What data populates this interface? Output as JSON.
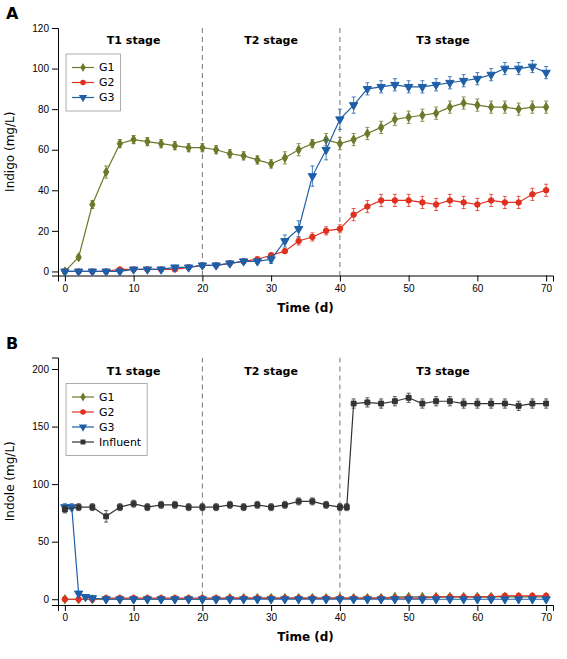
{
  "chart_data": [
    {
      "type": "line",
      "title": "A",
      "x_label": "Time (d)",
      "y_label": "Indigo (mg/L)",
      "xlim": [
        -1,
        71
      ],
      "ylim": [
        -2,
        120
      ],
      "xticks": [
        0,
        10,
        20,
        30,
        40,
        50,
        60,
        70
      ],
      "yticks": [
        0,
        20,
        40,
        60,
        80,
        100,
        120
      ],
      "grid": false,
      "legend": "upper left",
      "vertical_lines": [
        20,
        40
      ],
      "annotations": [
        {
          "text": "T1 stage",
          "x": 10,
          "y": 116
        },
        {
          "text": "T2 stage",
          "x": 30,
          "y": 116
        },
        {
          "text": "T3 stage",
          "x": 55,
          "y": 116
        }
      ],
      "series": [
        {
          "name": "G1",
          "color": "#6b7a2a",
          "marker": "diamond",
          "line_style": "solid",
          "x": [
            0,
            2,
            4,
            6,
            8,
            10,
            12,
            14,
            16,
            18,
            20,
            22,
            24,
            26,
            28,
            30,
            32,
            34,
            36,
            38,
            40,
            42,
            44,
            46,
            48,
            50,
            52,
            54,
            56,
            58,
            60,
            62,
            64,
            66,
            68,
            70
          ],
          "values": [
            0,
            7,
            33,
            49,
            63,
            65,
            64,
            63,
            62,
            61,
            61,
            60,
            58,
            57,
            55,
            53,
            56,
            60,
            63,
            65,
            63,
            65,
            68,
            71,
            75,
            76,
            77,
            78,
            81,
            83,
            82,
            81,
            81,
            80,
            81,
            81
          ],
          "errors": [
            1,
            1,
            2,
            3,
            2,
            2,
            2,
            2,
            2,
            2,
            2,
            2,
            2,
            2,
            2,
            2,
            3,
            3,
            2,
            3,
            3,
            3,
            3,
            3,
            3,
            3,
            3,
            3,
            3,
            3,
            3,
            3,
            3,
            3,
            3,
            3
          ]
        },
        {
          "name": "G2",
          "color": "#e03020",
          "marker": "circle",
          "line_style": "solid",
          "x": [
            0,
            2,
            4,
            6,
            8,
            10,
            12,
            14,
            16,
            18,
            20,
            22,
            24,
            26,
            28,
            30,
            32,
            34,
            36,
            38,
            40,
            42,
            44,
            46,
            48,
            50,
            52,
            54,
            56,
            58,
            60,
            62,
            64,
            66,
            68,
            70
          ],
          "values": [
            0,
            0,
            0,
            0,
            1,
            1,
            1,
            1,
            1,
            2,
            3,
            3,
            4,
            5,
            6,
            8,
            10,
            15,
            17,
            20,
            21,
            28,
            32,
            35,
            35,
            35,
            34,
            33,
            35,
            34,
            33,
            35,
            34,
            34,
            38,
            40
          ],
          "errors": [
            0.5,
            0.5,
            0.5,
            0.5,
            0.5,
            0.5,
            0.5,
            0.5,
            0.5,
            1,
            1,
            1,
            1,
            1,
            1,
            1,
            1,
            2,
            2,
            2,
            2,
            3,
            3,
            3,
            3,
            3,
            3,
            3,
            3,
            3,
            3,
            3,
            3,
            3,
            3,
            3
          ]
        },
        {
          "name": "G3",
          "color": "#1e5fa8",
          "marker": "triangle_down",
          "line_style": "solid",
          "x": [
            0,
            2,
            4,
            6,
            8,
            10,
            12,
            14,
            16,
            18,
            20,
            22,
            24,
            26,
            28,
            30,
            32,
            34,
            36,
            38,
            40,
            42,
            44,
            46,
            48,
            50,
            52,
            54,
            56,
            58,
            60,
            62,
            64,
            66,
            68,
            70
          ],
          "values": [
            0,
            0,
            0,
            0,
            0,
            1,
            1,
            1,
            2,
            2,
            3,
            3,
            4,
            5,
            5,
            6,
            15,
            21,
            47,
            60,
            75,
            82,
            90,
            91,
            92,
            91,
            91,
            92,
            93,
            94,
            95,
            97,
            100,
            100,
            101,
            98
          ],
          "errors": [
            0.5,
            0.5,
            0.5,
            0.5,
            0.5,
            0.5,
            0.5,
            0.5,
            1,
            1,
            1,
            1,
            1,
            1,
            1,
            2,
            3,
            4,
            5,
            5,
            5,
            4,
            3,
            3,
            3,
            3,
            3,
            3,
            3,
            3,
            3,
            3,
            3,
            3,
            3,
            3
          ]
        }
      ]
    },
    {
      "type": "line",
      "title": "B",
      "x_label": "Time (d)",
      "y_label": "Indole (mg/L)",
      "xlim": [
        -1,
        71
      ],
      "ylim": [
        -5,
        210
      ],
      "xticks": [
        0,
        10,
        20,
        30,
        40,
        50,
        60,
        70
      ],
      "yticks": [
        0,
        50,
        100,
        150,
        200
      ],
      "grid": false,
      "legend": "upper left",
      "vertical_lines": [
        20,
        40
      ],
      "annotations": [
        {
          "text": "T1 stage",
          "x": 10,
          "y": 202
        },
        {
          "text": "T2 stage",
          "x": 30,
          "y": 202
        },
        {
          "text": "T3 stage",
          "x": 55,
          "y": 202
        }
      ],
      "series": [
        {
          "name": "G1",
          "color": "#6b7a2a",
          "marker": "diamond",
          "line_style": "solid",
          "x": [
            0,
            2,
            4,
            6,
            8,
            10,
            12,
            14,
            16,
            18,
            20,
            22,
            24,
            26,
            28,
            30,
            32,
            34,
            36,
            38,
            40,
            42,
            44,
            46,
            48,
            50,
            52,
            54,
            56,
            58,
            60,
            62,
            64,
            66,
            68,
            70
          ],
          "values": [
            0,
            0,
            0,
            0,
            0,
            0,
            0,
            0,
            0,
            0,
            0,
            0,
            1,
            1,
            1,
            1,
            1,
            1,
            1,
            1,
            1,
            1,
            1,
            1,
            2,
            2,
            2,
            2,
            2,
            2,
            2,
            2,
            2,
            2,
            2,
            2
          ],
          "errors": [
            0.3,
            0.3,
            0.3,
            0.3,
            0.3,
            0.3,
            0.3,
            0.3,
            0.3,
            0.3,
            0.3,
            0.3,
            0.3,
            0.3,
            0.3,
            0.3,
            0.3,
            0.3,
            0.3,
            0.3,
            0.3,
            0.3,
            0.3,
            0.3,
            0.3,
            0.3,
            0.3,
            0.3,
            0.3,
            0.3,
            0.3,
            0.3,
            0.3,
            0.3,
            0.3,
            0.3
          ]
        },
        {
          "name": "G2",
          "color": "#e03020",
          "marker": "circle",
          "line_style": "solid",
          "x": [
            0,
            2,
            4,
            6,
            8,
            10,
            12,
            14,
            16,
            18,
            20,
            22,
            24,
            26,
            28,
            30,
            32,
            34,
            36,
            38,
            40,
            42,
            44,
            46,
            48,
            50,
            52,
            54,
            56,
            58,
            60,
            62,
            64,
            66,
            68,
            70
          ],
          "values": [
            0,
            0,
            0,
            1,
            1,
            1,
            1,
            1,
            1,
            1,
            1,
            1,
            1,
            1,
            1,
            1,
            1,
            1,
            1,
            1,
            1,
            1,
            1,
            1,
            1,
            1,
            1,
            2,
            2,
            2,
            2,
            2,
            3,
            3,
            3,
            3
          ],
          "errors": [
            0.3,
            0.3,
            0.3,
            0.3,
            0.3,
            0.3,
            0.3,
            0.3,
            0.3,
            0.3,
            0.3,
            0.3,
            0.3,
            0.3,
            0.3,
            0.3,
            0.3,
            0.3,
            0.3,
            0.3,
            0.3,
            0.3,
            0.3,
            0.3,
            0.3,
            0.3,
            0.3,
            0.3,
            0.3,
            0.3,
            0.3,
            0.3,
            0.3,
            0.3,
            0.3,
            0.3
          ]
        },
        {
          "name": "G3",
          "color": "#1e5fa8",
          "marker": "triangle_down",
          "line_style": "solid",
          "x": [
            0,
            1,
            2,
            3,
            4,
            6,
            8,
            10,
            12,
            14,
            16,
            18,
            20,
            22,
            24,
            26,
            28,
            30,
            32,
            34,
            36,
            38,
            40,
            42,
            44,
            46,
            48,
            50,
            52,
            54,
            56,
            58,
            60,
            62,
            64,
            66,
            68,
            70
          ],
          "values": [
            80,
            80,
            5,
            2,
            1,
            0,
            0,
            0,
            0,
            0,
            0,
            0,
            0,
            0,
            0,
            0,
            0,
            0,
            0,
            0,
            0,
            0,
            0,
            0,
            0,
            0,
            0,
            0,
            0,
            0,
            0,
            0,
            0,
            0,
            0,
            0,
            0,
            0
          ],
          "errors": [
            3,
            3,
            1,
            0.5,
            0.3,
            0.3,
            0.3,
            0.3,
            0.3,
            0.3,
            0.3,
            0.3,
            0.3,
            0.3,
            0.3,
            0.3,
            0.3,
            0.3,
            0.3,
            0.3,
            0.3,
            0.3,
            0.3,
            0.3,
            0.3,
            0.3,
            0.3,
            0.3,
            0.3,
            0.3,
            0.3,
            0.3,
            0.3,
            0.3,
            0.3,
            0.3,
            0.3,
            0.3
          ]
        },
        {
          "name": "Influent",
          "color": "#333333",
          "marker": "square",
          "line_style": "solid",
          "x": [
            0,
            2,
            4,
            6,
            8,
            10,
            12,
            14,
            16,
            18,
            20,
            22,
            24,
            26,
            28,
            30,
            32,
            34,
            36,
            38,
            40,
            41,
            42,
            44,
            46,
            48,
            50,
            52,
            54,
            56,
            58,
            60,
            62,
            64,
            66,
            68,
            70
          ],
          "values": [
            78,
            80,
            80,
            72,
            80,
            83,
            80,
            82,
            82,
            80,
            80,
            80,
            82,
            80,
            82,
            80,
            82,
            85,
            85,
            82,
            80,
            80,
            170,
            171,
            170,
            172,
            175,
            170,
            172,
            172,
            170,
            170,
            170,
            170,
            168,
            170,
            170
          ],
          "errors": [
            3,
            3,
            3,
            5,
            3,
            3,
            3,
            3,
            3,
            3,
            3,
            3,
            3,
            3,
            3,
            3,
            3,
            3,
            3,
            3,
            3,
            3,
            4,
            4,
            4,
            4,
            4,
            4,
            4,
            4,
            4,
            4,
            4,
            4,
            4,
            4,
            4
          ]
        }
      ]
    }
  ]
}
